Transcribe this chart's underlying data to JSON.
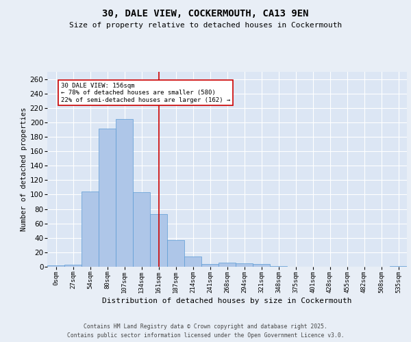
{
  "title": "30, DALE VIEW, COCKERMOUTH, CA13 9EN",
  "subtitle": "Size of property relative to detached houses in Cockermouth",
  "xlabel": "Distribution of detached houses by size in Cockermouth",
  "ylabel": "Number of detached properties",
  "bin_labels": [
    "0sqm",
    "27sqm",
    "54sqm",
    "80sqm",
    "107sqm",
    "134sqm",
    "161sqm",
    "187sqm",
    "214sqm",
    "241sqm",
    "268sqm",
    "294sqm",
    "321sqm",
    "348sqm",
    "375sqm",
    "401sqm",
    "428sqm",
    "455sqm",
    "482sqm",
    "508sqm",
    "535sqm"
  ],
  "bar_values": [
    2,
    3,
    104,
    191,
    205,
    103,
    73,
    37,
    14,
    4,
    6,
    5,
    4,
    1,
    0,
    0,
    0,
    0,
    0,
    0,
    1
  ],
  "bar_color": "#aec6e8",
  "bar_edge_color": "#5b9bd5",
  "vline_x": 6,
  "vline_color": "#cc0000",
  "annotation_text": "30 DALE VIEW: 156sqm\n← 78% of detached houses are smaller (580)\n22% of semi-detached houses are larger (162) →",
  "annotation_box_color": "#ffffff",
  "annotation_box_edge_color": "#cc0000",
  "ylim": [
    0,
    270
  ],
  "yticks": [
    0,
    20,
    40,
    60,
    80,
    100,
    120,
    140,
    160,
    180,
    200,
    220,
    240,
    260
  ],
  "bg_color": "#e8eef6",
  "plot_bg_color": "#dce6f4",
  "footer_line1": "Contains HM Land Registry data © Crown copyright and database right 2025.",
  "footer_line2": "Contains public sector information licensed under the Open Government Licence v3.0."
}
